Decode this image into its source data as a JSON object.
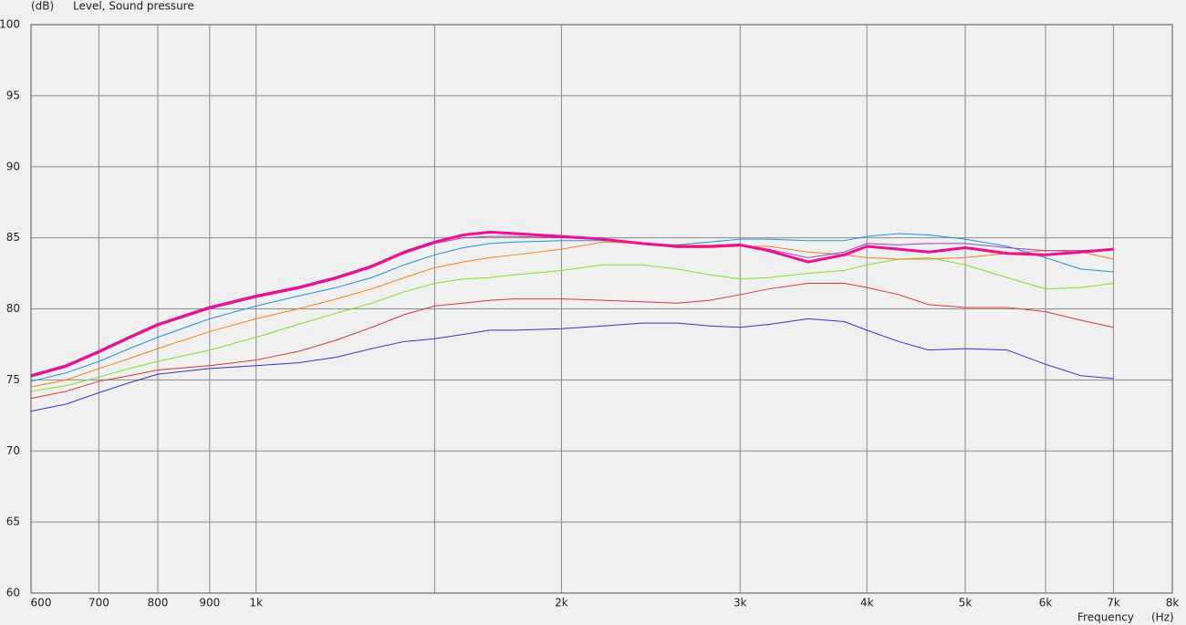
{
  "chart_data": {
    "type": "line",
    "y_unit": "(dB)",
    "y_label": "Level, Sound pressure",
    "x_label": "Frequency",
    "x_unit": "(Hz)",
    "x_scale": "log",
    "grid": true,
    "xlim": [
      600,
      8000
    ],
    "ylim": [
      60,
      100
    ],
    "yticks": [
      60,
      65,
      70,
      75,
      80,
      85,
      90,
      95,
      100
    ],
    "xticks": [
      600,
      700,
      800,
      900,
      {
        "value": 1000,
        "label": "1k"
      },
      {
        "value": 2000,
        "label": "2k"
      },
      {
        "value": 3000,
        "label": "3k"
      },
      {
        "value": 4000,
        "label": "4k"
      },
      {
        "value": 5000,
        "label": "5k"
      },
      {
        "value": 6000,
        "label": "6k"
      },
      {
        "value": 7000,
        "label": "7k"
      },
      {
        "value": 8000,
        "label": "8k"
      }
    ],
    "minor_xticks": [
      1500
    ],
    "x": [
      600,
      650,
      700,
      750,
      800,
      900,
      1000,
      1100,
      1200,
      1300,
      1400,
      1500,
      1600,
      1700,
      1800,
      2000,
      2200,
      2400,
      2600,
      2800,
      3000,
      3200,
      3500,
      3800,
      4000,
      4300,
      4600,
      5000,
      5500,
      6000,
      6500,
      7000
    ],
    "series": [
      {
        "color": "#3535c8",
        "width": 1,
        "values": [
          72.8,
          73.3,
          74.1,
          74.8,
          75.4,
          75.8,
          76.0,
          76.2,
          76.6,
          77.2,
          77.7,
          77.9,
          78.2,
          78.5,
          78.5,
          78.6,
          78.8,
          79.0,
          79.0,
          78.8,
          78.7,
          78.9,
          79.3,
          79.1,
          78.5,
          77.7,
          77.1,
          77.2,
          77.1,
          76.1,
          75.3,
          75.1
        ]
      },
      {
        "color": "#d03a3a",
        "width": 1,
        "values": [
          73.7,
          74.2,
          74.9,
          75.3,
          75.7,
          76.0,
          76.4,
          77.0,
          77.8,
          78.7,
          79.6,
          80.2,
          80.4,
          80.6,
          80.7,
          80.7,
          80.6,
          80.5,
          80.4,
          80.6,
          81.0,
          81.4,
          81.8,
          81.8,
          81.5,
          81.0,
          80.3,
          80.1,
          80.1,
          79.8,
          79.2,
          78.7
        ]
      },
      {
        "color": "#80e020",
        "width": 1,
        "values": [
          74.2,
          74.6,
          75.2,
          75.8,
          76.3,
          77.1,
          78.0,
          78.9,
          79.7,
          80.4,
          81.2,
          81.8,
          82.1,
          82.2,
          82.4,
          82.7,
          83.1,
          83.1,
          82.8,
          82.4,
          82.1,
          82.2,
          82.5,
          82.7,
          83.1,
          83.5,
          83.6,
          83.1,
          82.2,
          81.4,
          81.5,
          81.8
        ]
      },
      {
        "color": "#f08020",
        "width": 1,
        "values": [
          74.5,
          75.0,
          75.8,
          76.5,
          77.2,
          78.4,
          79.3,
          80.0,
          80.7,
          81.4,
          82.2,
          82.9,
          83.3,
          83.6,
          83.8,
          84.2,
          84.7,
          84.6,
          84.3,
          84.3,
          84.4,
          84.4,
          84.0,
          83.8,
          83.6,
          83.5,
          83.5,
          83.6,
          83.9,
          84.1,
          84.0,
          83.5
        ]
      },
      {
        "color": "#2090e0",
        "width": 1,
        "values": [
          74.9,
          75.5,
          76.3,
          77.2,
          78.0,
          79.3,
          80.2,
          80.9,
          81.5,
          82.2,
          83.1,
          83.8,
          84.3,
          84.6,
          84.7,
          84.8,
          84.8,
          84.6,
          84.5,
          84.7,
          84.9,
          84.9,
          84.8,
          84.8,
          85.1,
          85.3,
          85.2,
          84.9,
          84.4,
          83.6,
          82.8,
          82.6
        ]
      },
      {
        "color": "#a040c0",
        "width": 1,
        "values": [
          75.2,
          75.9,
          76.9,
          77.9,
          78.8,
          80.0,
          80.8,
          81.4,
          82.1,
          82.9,
          83.9,
          84.6,
          85.0,
          85.1,
          85.1,
          85.0,
          84.9,
          84.6,
          84.4,
          84.4,
          84.5,
          84.2,
          83.6,
          84.0,
          84.6,
          84.5,
          84.6,
          84.6,
          84.3,
          84.1,
          84.1,
          84.2
        ]
      },
      {
        "color": "#ec1090",
        "width": 3,
        "values": [
          75.3,
          76.0,
          77.0,
          78.0,
          78.9,
          80.1,
          80.9,
          81.5,
          82.2,
          83.0,
          84.0,
          84.7,
          85.2,
          85.4,
          85.3,
          85.1,
          84.9,
          84.6,
          84.4,
          84.4,
          84.5,
          84.1,
          83.3,
          83.8,
          84.4,
          84.2,
          84.0,
          84.3,
          83.9,
          83.8,
          84.0,
          84.2
        ]
      }
    ]
  }
}
